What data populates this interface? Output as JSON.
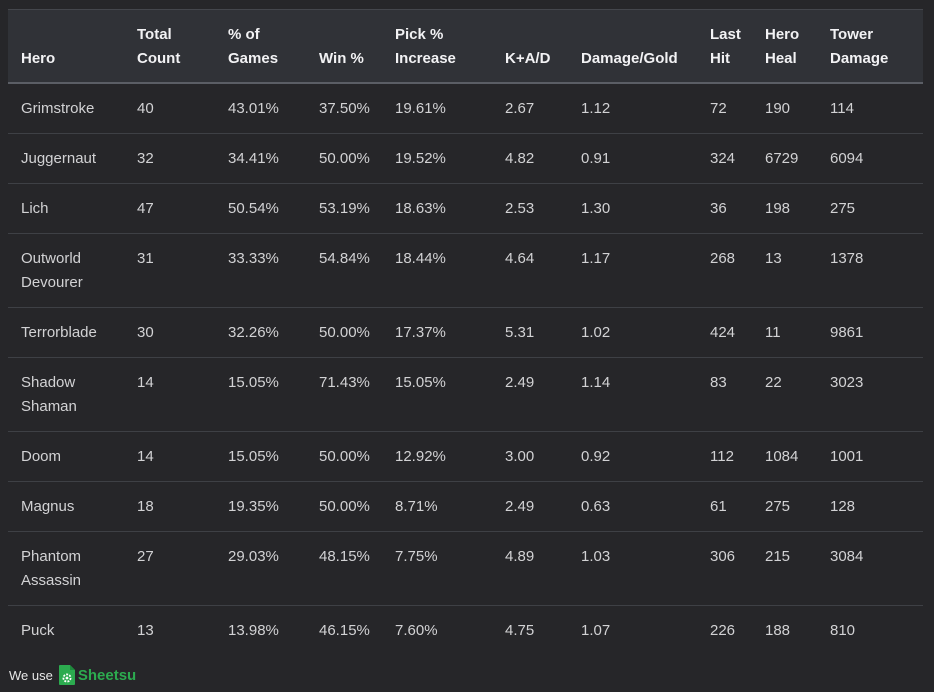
{
  "table": {
    "headers": [
      [
        "Hero"
      ],
      [
        "Total",
        "Count"
      ],
      [
        "% of",
        "Games"
      ],
      [
        "Win %"
      ],
      [
        "Pick %",
        "Increase"
      ],
      [
        "K+A/D"
      ],
      [
        "Damage/Gold"
      ],
      [
        "Last",
        "Hit"
      ],
      [
        "Hero",
        "Heal"
      ],
      [
        "Tower",
        "Damage"
      ]
    ],
    "rows": [
      [
        [
          "Grimstroke"
        ],
        "40",
        "43.01%",
        "37.50%",
        "19.61%",
        "2.67",
        "1.12",
        "72",
        "190",
        "114"
      ],
      [
        [
          "Juggernaut"
        ],
        "32",
        "34.41%",
        "50.00%",
        "19.52%",
        "4.82",
        "0.91",
        "324",
        "6729",
        "6094"
      ],
      [
        [
          "Lich"
        ],
        "47",
        "50.54%",
        "53.19%",
        "18.63%",
        "2.53",
        "1.30",
        "36",
        "198",
        "275"
      ],
      [
        [
          "Outworld",
          "Devourer"
        ],
        "31",
        "33.33%",
        "54.84%",
        "18.44%",
        "4.64",
        "1.17",
        "268",
        "13",
        "1378"
      ],
      [
        [
          "Terrorblade"
        ],
        "30",
        "32.26%",
        "50.00%",
        "17.37%",
        "5.31",
        "1.02",
        "424",
        "11",
        "9861"
      ],
      [
        [
          "Shadow",
          "Shaman"
        ],
        "14",
        "15.05%",
        "71.43%",
        "15.05%",
        "2.49",
        "1.14",
        "83",
        "22",
        "3023"
      ],
      [
        [
          "Doom"
        ],
        "14",
        "15.05%",
        "50.00%",
        "12.92%",
        "3.00",
        "0.92",
        "112",
        "1084",
        "1001"
      ],
      [
        [
          "Magnus"
        ],
        "18",
        "19.35%",
        "50.00%",
        "8.71%",
        "2.49",
        "0.63",
        "61",
        "275",
        "128"
      ],
      [
        [
          "Phantom",
          "Assassin"
        ],
        "27",
        "29.03%",
        "48.15%",
        "7.75%",
        "4.89",
        "1.03",
        "306",
        "215",
        "3084"
      ],
      [
        [
          "Puck"
        ],
        "13",
        "13.98%",
        "46.15%",
        "7.60%",
        "4.75",
        "1.07",
        "226",
        "188",
        "810"
      ]
    ]
  },
  "footer": {
    "prefix": "We use",
    "brand": "Sheetsu",
    "brand_color": "#2cab4f",
    "icon": "sheetsu-gear-icon"
  }
}
